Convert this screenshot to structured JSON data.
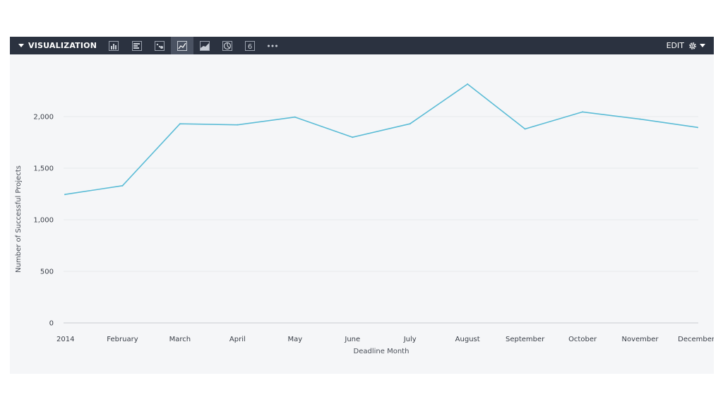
{
  "toolbar": {
    "title": "VISUALIZATION",
    "edit_label": "EDIT",
    "buttons": [
      {
        "icon": "column-chart-icon"
      },
      {
        "icon": "bar-chart-icon"
      },
      {
        "icon": "scatter-chart-icon"
      },
      {
        "icon": "line-chart-icon",
        "active": true
      },
      {
        "icon": "area-chart-icon"
      },
      {
        "icon": "pie-chart-icon"
      },
      {
        "icon": "single-value-icon",
        "label": "6"
      },
      {
        "icon": "more-icon"
      }
    ]
  },
  "colors": {
    "toolbar_bg": "#2b3240",
    "panel_bg": "#f5f6f8",
    "line": "#5bbcd6",
    "grid": "#e8eaed"
  },
  "chart_data": {
    "type": "line",
    "categories": [
      "2014",
      "February",
      "March",
      "April",
      "May",
      "June",
      "July",
      "August",
      "September",
      "October",
      "November",
      "December"
    ],
    "series": [
      {
        "values": [
          1245,
          1330,
          1930,
          1920,
          1995,
          1800,
          1930,
          2315,
          1880,
          2045,
          1975,
          1895
        ]
      }
    ],
    "xlabel": "Deadline Month",
    "ylabel": "Number of Successful Projects",
    "ylim": [
      0,
      2500
    ],
    "yticks": [
      0,
      500,
      1000,
      1500,
      2000
    ],
    "ytick_labels": [
      "0",
      "500",
      "1,000",
      "1,500",
      "2,000"
    ],
    "grid": true,
    "legend": "none"
  }
}
